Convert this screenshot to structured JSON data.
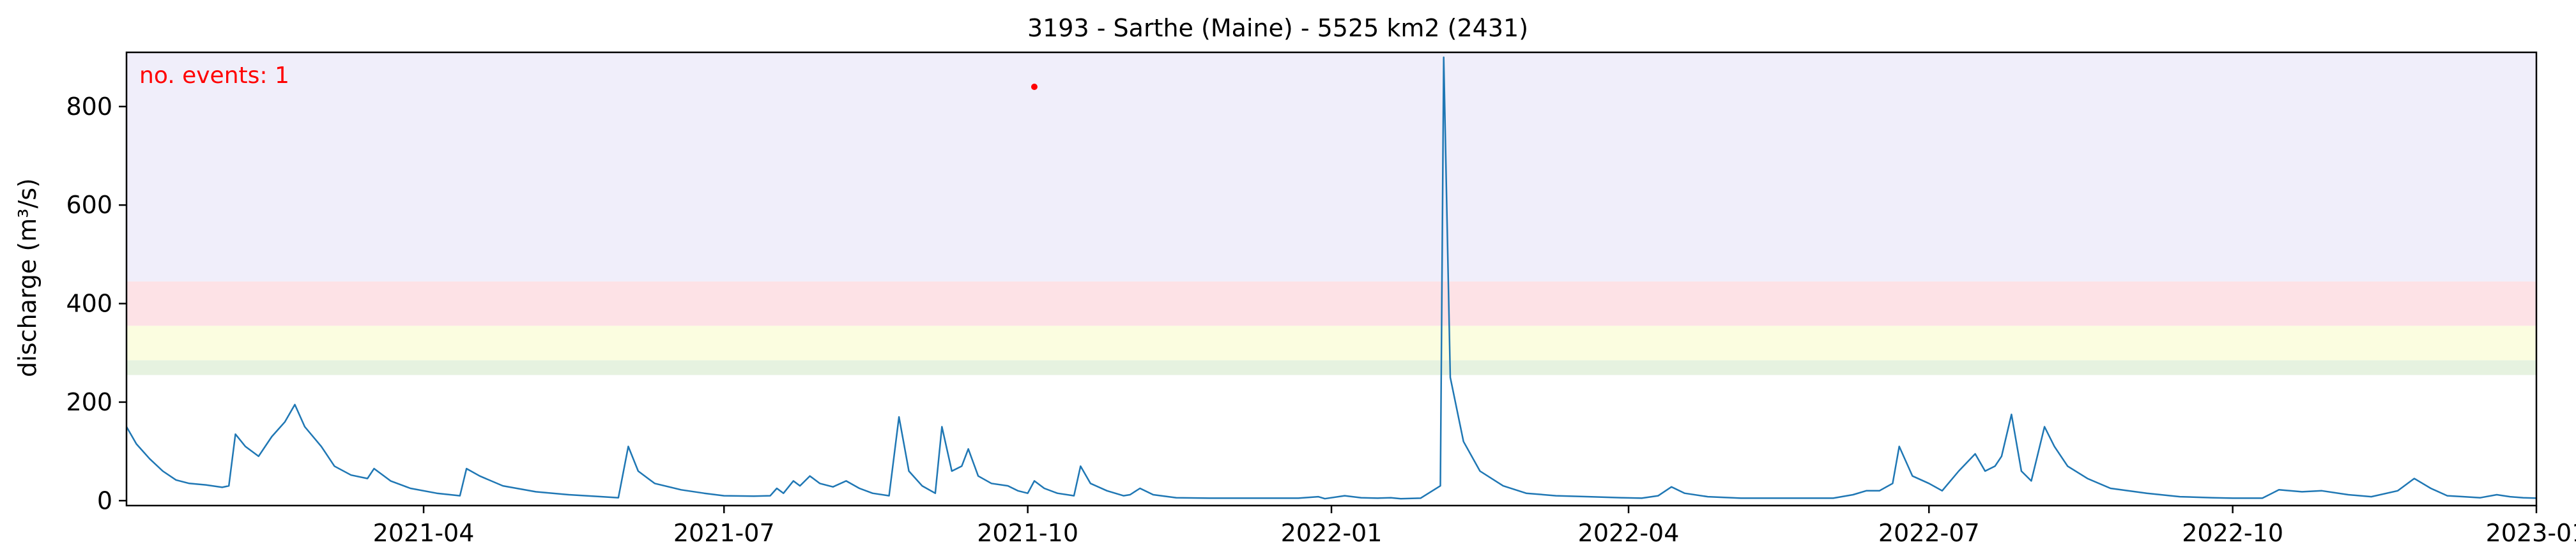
{
  "chart_data": {
    "type": "line",
    "title": "3193 - Sarthe (Maine) - 5525 km2 (2431)",
    "xlabel": "",
    "ylabel": "discharge (m³/s)",
    "xlim": [
      "2021-01-01",
      "2023-01-01"
    ],
    "ylim": [
      -10,
      910
    ],
    "x_ticks": [
      "2021-04",
      "2021-07",
      "2021-10",
      "2022-01",
      "2022-04",
      "2022-07",
      "2022-10",
      "2023-01"
    ],
    "y_ticks": [
      0,
      200,
      400,
      600,
      800
    ],
    "grid": false,
    "annotation": "no. events: 1",
    "threshold_bands": [
      {
        "from": 255,
        "to": 285,
        "color": "#e6f2e0"
      },
      {
        "from": 285,
        "to": 355,
        "color": "#fbfde0"
      },
      {
        "from": 355,
        "to": 445,
        "color": "#fde2e6"
      },
      {
        "from": 445,
        "to": 910,
        "color": "#f0eefa"
      }
    ],
    "series": [
      {
        "color": "#1f77b4",
        "points": [
          [
            "2021-01-01",
            150
          ],
          [
            "2021-01-04",
            115
          ],
          [
            "2021-01-08",
            85
          ],
          [
            "2021-01-12",
            60
          ],
          [
            "2021-01-16",
            42
          ],
          [
            "2021-01-20",
            35
          ],
          [
            "2021-01-25",
            32
          ],
          [
            "2021-01-30",
            27
          ],
          [
            "2021-02-01",
            30
          ],
          [
            "2021-02-03",
            135
          ],
          [
            "2021-02-06",
            110
          ],
          [
            "2021-02-10",
            90
          ],
          [
            "2021-02-14",
            130
          ],
          [
            "2021-02-18",
            160
          ],
          [
            "2021-02-21",
            195
          ],
          [
            "2021-02-24",
            150
          ],
          [
            "2021-03-01",
            110
          ],
          [
            "2021-03-05",
            70
          ],
          [
            "2021-03-10",
            52
          ],
          [
            "2021-03-15",
            45
          ],
          [
            "2021-03-17",
            65
          ],
          [
            "2021-03-22",
            40
          ],
          [
            "2021-03-28",
            25
          ],
          [
            "2021-04-05",
            15
          ],
          [
            "2021-04-12",
            10
          ],
          [
            "2021-04-14",
            65
          ],
          [
            "2021-04-18",
            50
          ],
          [
            "2021-04-25",
            30
          ],
          [
            "2021-05-05",
            18
          ],
          [
            "2021-05-15",
            12
          ],
          [
            "2021-05-25",
            8
          ],
          [
            "2021-05-30",
            6
          ],
          [
            "2021-06-02",
            110
          ],
          [
            "2021-06-05",
            60
          ],
          [
            "2021-06-10",
            35
          ],
          [
            "2021-06-18",
            22
          ],
          [
            "2021-06-25",
            15
          ],
          [
            "2021-07-01",
            10
          ],
          [
            "2021-07-10",
            9
          ],
          [
            "2021-07-15",
            10
          ],
          [
            "2021-07-17",
            25
          ],
          [
            "2021-07-19",
            15
          ],
          [
            "2021-07-22",
            40
          ],
          [
            "2021-07-24",
            30
          ],
          [
            "2021-07-27",
            50
          ],
          [
            "2021-07-30",
            35
          ],
          [
            "2021-08-03",
            28
          ],
          [
            "2021-08-07",
            40
          ],
          [
            "2021-08-11",
            25
          ],
          [
            "2021-08-15",
            15
          ],
          [
            "2021-08-20",
            10
          ],
          [
            "2021-08-23",
            170
          ],
          [
            "2021-08-26",
            60
          ],
          [
            "2021-08-30",
            30
          ],
          [
            "2021-09-03",
            15
          ],
          [
            "2021-09-05",
            150
          ],
          [
            "2021-09-08",
            60
          ],
          [
            "2021-09-11",
            70
          ],
          [
            "2021-09-13",
            105
          ],
          [
            "2021-09-16",
            50
          ],
          [
            "2021-09-20",
            35
          ],
          [
            "2021-09-25",
            30
          ],
          [
            "2021-09-28",
            20
          ],
          [
            "2021-10-01",
            15
          ],
          [
            "2021-10-03",
            40
          ],
          [
            "2021-10-06",
            25
          ],
          [
            "2021-10-10",
            15
          ],
          [
            "2021-10-15",
            10
          ],
          [
            "2021-10-17",
            70
          ],
          [
            "2021-10-20",
            35
          ],
          [
            "2021-10-25",
            20
          ],
          [
            "2021-10-30",
            10
          ],
          [
            "2021-11-01",
            12
          ],
          [
            "2021-11-04",
            25
          ],
          [
            "2021-11-08",
            12
          ],
          [
            "2021-11-15",
            6
          ],
          [
            "2021-11-25",
            5
          ],
          [
            "2021-12-05",
            5
          ],
          [
            "2021-12-15",
            5
          ],
          [
            "2021-12-22",
            5
          ],
          [
            "2021-12-28",
            8
          ],
          [
            "2021-12-30",
            4
          ],
          [
            "2022-01-05",
            10
          ],
          [
            "2022-01-10",
            6
          ],
          [
            "2022-01-15",
            5
          ],
          [
            "2022-01-19",
            6
          ],
          [
            "2022-01-22",
            4
          ],
          [
            "2022-01-28",
            5
          ],
          [
            "2022-02-03",
            30
          ],
          [
            "2022-02-04",
            900
          ],
          [
            "2022-02-06",
            250
          ],
          [
            "2022-02-10",
            120
          ],
          [
            "2022-02-15",
            60
          ],
          [
            "2022-02-22",
            30
          ],
          [
            "2022-03-01",
            15
          ],
          [
            "2022-03-10",
            10
          ],
          [
            "2022-03-20",
            8
          ],
          [
            "2022-03-30",
            6
          ],
          [
            "2022-04-05",
            5
          ],
          [
            "2022-04-10",
            10
          ],
          [
            "2022-04-14",
            28
          ],
          [
            "2022-04-18",
            15
          ],
          [
            "2022-04-25",
            8
          ],
          [
            "2022-05-05",
            5
          ],
          [
            "2022-05-15",
            5
          ],
          [
            "2022-05-25",
            5
          ],
          [
            "2022-06-02",
            5
          ],
          [
            "2022-06-08",
            12
          ],
          [
            "2022-06-12",
            20
          ],
          [
            "2022-06-16",
            20
          ],
          [
            "2022-06-20",
            35
          ],
          [
            "2022-06-22",
            110
          ],
          [
            "2022-06-26",
            50
          ],
          [
            "2022-07-01",
            35
          ],
          [
            "2022-07-05",
            20
          ],
          [
            "2022-07-10",
            60
          ],
          [
            "2022-07-15",
            95
          ],
          [
            "2022-07-18",
            60
          ],
          [
            "2022-07-21",
            70
          ],
          [
            "2022-07-23",
            90
          ],
          [
            "2022-07-26",
            175
          ],
          [
            "2022-07-29",
            60
          ],
          [
            "2022-08-01",
            40
          ],
          [
            "2022-08-05",
            150
          ],
          [
            "2022-08-08",
            110
          ],
          [
            "2022-08-12",
            70
          ],
          [
            "2022-08-18",
            45
          ],
          [
            "2022-08-25",
            25
          ],
          [
            "2022-09-05",
            15
          ],
          [
            "2022-09-15",
            8
          ],
          [
            "2022-09-25",
            6
          ],
          [
            "2022-10-01",
            5
          ],
          [
            "2022-10-05",
            5
          ],
          [
            "2022-10-10",
            5
          ],
          [
            "2022-10-15",
            22
          ],
          [
            "2022-10-22",
            18
          ],
          [
            "2022-10-28",
            20
          ],
          [
            "2022-11-05",
            12
          ],
          [
            "2022-11-12",
            8
          ],
          [
            "2022-11-20",
            20
          ],
          [
            "2022-11-25",
            45
          ],
          [
            "2022-11-30",
            25
          ],
          [
            "2022-12-05",
            10
          ],
          [
            "2022-12-10",
            8
          ],
          [
            "2022-12-15",
            6
          ],
          [
            "2022-12-20",
            12
          ],
          [
            "2022-12-24",
            8
          ],
          [
            "2022-12-28",
            6
          ],
          [
            "2023-01-01",
            5
          ]
        ]
      }
    ],
    "event_marker": {
      "x": "2021-10-03",
      "y": 840,
      "color": "#ff0000"
    }
  }
}
